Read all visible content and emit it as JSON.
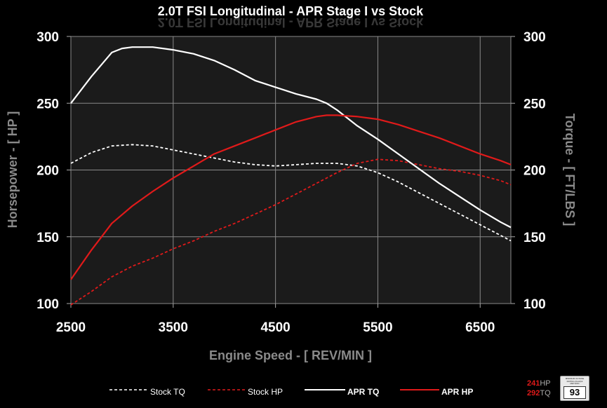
{
  "chart_data": {
    "type": "line",
    "title": "2.0T FSI Longitudinal - APR Stage I vs Stock",
    "xlabel": "Engine Speed - [ REV/MIN ]",
    "ylabel_left": "Horsepower - [ HP ]",
    "ylabel_right": "Torque - [ FT/LBS ]",
    "xlim": [
      2500,
      6800
    ],
    "ylim": [
      100,
      300
    ],
    "x_ticks": [
      "2500",
      "3500",
      "4500",
      "5500",
      "6500"
    ],
    "y_ticks": [
      "100",
      "150",
      "200",
      "250",
      "300"
    ],
    "grid": true,
    "legend_position": "bottom",
    "series": [
      {
        "name": "Stock TQ",
        "color": "#ffffff",
        "dashed": true,
        "x": [
          2500,
          2700,
          2900,
          3100,
          3300,
          3500,
          3700,
          3900,
          4100,
          4300,
          4500,
          4700,
          4900,
          5100,
          5300,
          5500,
          5700,
          5900,
          6100,
          6300,
          6500,
          6700,
          6800
        ],
        "y": [
          205,
          213,
          218,
          219,
          218,
          215,
          212,
          209,
          206,
          204,
          203,
          204,
          205,
          205,
          203,
          198,
          191,
          183,
          175,
          167,
          159,
          151,
          147
        ]
      },
      {
        "name": "Stock HP",
        "color": "#e01a1a",
        "dashed": true,
        "x": [
          2500,
          2700,
          2900,
          3100,
          3300,
          3500,
          3700,
          3900,
          4100,
          4300,
          4500,
          4700,
          4900,
          5100,
          5300,
          5500,
          5700,
          5900,
          6100,
          6300,
          6500,
          6700,
          6800
        ],
        "y": [
          99,
          109,
          120,
          128,
          134,
          141,
          147,
          154,
          160,
          167,
          174,
          182,
          190,
          198,
          205,
          208,
          207,
          204,
          201,
          199,
          196,
          192,
          189
        ]
      },
      {
        "name": "APR TQ",
        "color": "#ffffff",
        "dashed": false,
        "x": [
          2500,
          2700,
          2900,
          3000,
          3100,
          3300,
          3500,
          3700,
          3900,
          4100,
          4300,
          4500,
          4700,
          4900,
          5000,
          5100,
          5300,
          5500,
          5700,
          5900,
          6100,
          6300,
          6500,
          6700,
          6800
        ],
        "y": [
          250,
          270,
          288,
          291,
          292,
          292,
          290,
          287,
          282,
          275,
          267,
          262,
          257,
          253,
          250,
          245,
          233,
          223,
          212,
          201,
          190,
          180,
          170,
          161,
          157
        ]
      },
      {
        "name": "APR HP",
        "color": "#e01a1a",
        "dashed": false,
        "x": [
          2500,
          2700,
          2900,
          3100,
          3300,
          3500,
          3700,
          3900,
          4100,
          4300,
          4500,
          4700,
          4900,
          5000,
          5100,
          5300,
          5500,
          5700,
          5900,
          6100,
          6300,
          6500,
          6700,
          6800
        ],
        "y": [
          118,
          140,
          160,
          173,
          184,
          194,
          203,
          212,
          218,
          224,
          230,
          236,
          240,
          241,
          241,
          240,
          238,
          234,
          229,
          224,
          218,
          212,
          207,
          204
        ]
      }
    ]
  },
  "badge": {
    "hp_value": "241",
    "hp_unit": "HP",
    "tq_value": "292",
    "tq_unit": "TQ",
    "octane_label": "MINIMUM OCTANE RATING (R+M)/2 METHOD",
    "octane_value": "93"
  }
}
